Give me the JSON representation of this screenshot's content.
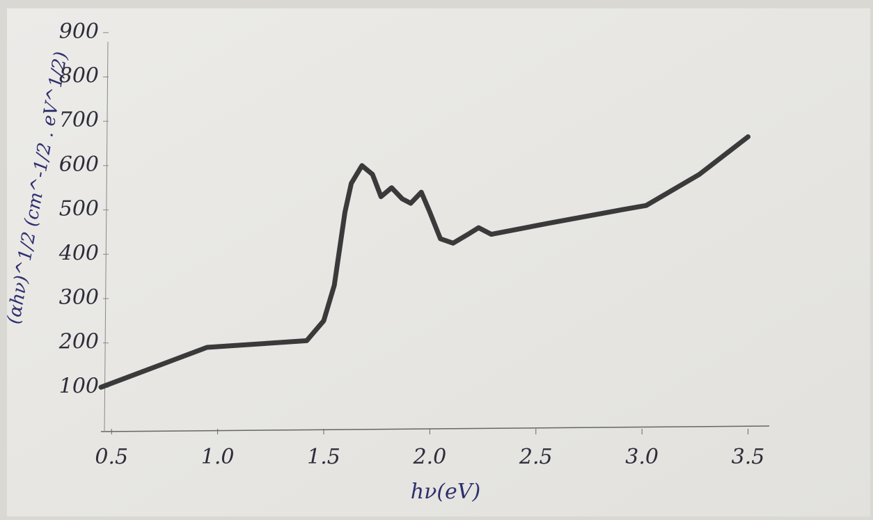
{
  "chart_data": {
    "type": "line",
    "x_label": "hν(eV)",
    "y_label": "(αhν)^1/2 (cm^-1/2 . eV^1/2)",
    "x": [
      0.45,
      0.95,
      1.42,
      1.5,
      1.55,
      1.6,
      1.63,
      1.68,
      1.73,
      1.77,
      1.82,
      1.87,
      1.91,
      1.96,
      2.0,
      2.05,
      2.11,
      2.18,
      2.23,
      2.29,
      2.56,
      2.9,
      3.02,
      3.27,
      3.5
    ],
    "values": [
      100,
      190,
      205,
      250,
      330,
      495,
      560,
      600,
      580,
      530,
      550,
      525,
      515,
      540,
      495,
      435,
      425,
      445,
      460,
      445,
      470,
      500,
      510,
      580,
      665
    ],
    "color": "#3a3a3a",
    "xlim": [
      0.45,
      3.6
    ],
    "ylim": [
      0,
      950
    ],
    "xticks": [
      0.5,
      {
        "value": 1,
        "label": "1.0"
      },
      1.5,
      {
        "value": 2,
        "label": "2.0"
      },
      2.5,
      {
        "value": 3,
        "label": "3.0"
      },
      3.5
    ],
    "yticks": [
      100,
      200,
      300,
      400,
      500,
      600,
      700,
      800,
      900
    ]
  }
}
